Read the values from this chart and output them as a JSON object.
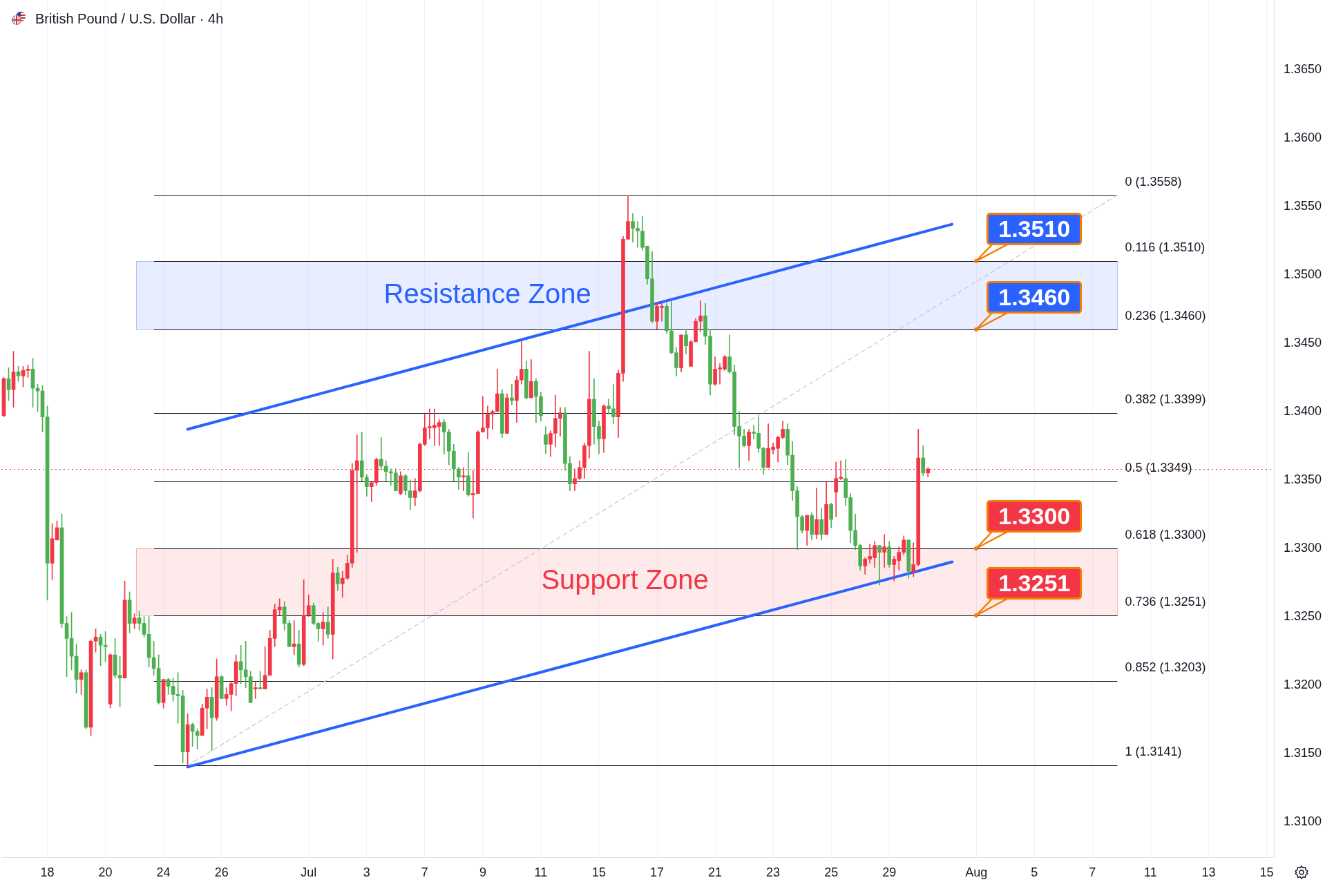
{
  "chart_data": {
    "type": "candlestick",
    "title": "British Pound / U.S. Dollar · 4h",
    "categories": [
      null,
      null,
      null,
      null,
      null,
      null,
      null,
      null,
      null,
      "18",
      null,
      null,
      null,
      null,
      null,
      null,
      null,
      null,
      null,
      null,
      null,
      "20",
      null,
      null,
      null,
      null,
      null,
      null,
      null,
      null,
      null,
      null,
      null,
      "24",
      null,
      null,
      null,
      null,
      null,
      null,
      null,
      null,
      null,
      null,
      null,
      "26",
      null,
      null,
      null,
      null,
      null,
      null,
      null,
      null,
      null,
      null,
      null,
      null,
      null,
      null,
      null,
      null,
      null,
      "Jul",
      null,
      null,
      null,
      null,
      null,
      null,
      null,
      null,
      null,
      null,
      null,
      "3",
      null,
      null,
      null,
      null,
      null,
      null,
      null,
      null,
      null,
      null,
      null,
      "7",
      null,
      null,
      null,
      null,
      null,
      null,
      null,
      null,
      null,
      null,
      null,
      "9",
      null,
      null,
      null,
      null,
      null,
      null,
      null,
      null,
      null,
      null,
      null,
      "11",
      null,
      null,
      null,
      null,
      null,
      null,
      null,
      null,
      null,
      null,
      null,
      "15",
      null,
      null,
      null,
      null,
      null,
      null,
      null,
      null,
      null,
      null,
      null,
      "17",
      null,
      null,
      null,
      null,
      null,
      null,
      null,
      null,
      null,
      null,
      null,
      "21",
      null,
      null,
      null,
      null,
      null,
      null,
      null,
      null,
      null,
      null,
      null,
      "23",
      null,
      null,
      null,
      null,
      null,
      null,
      null,
      null,
      null,
      null,
      null,
      "25",
      null,
      null,
      null,
      null,
      null,
      null,
      null,
      null,
      null,
      null,
      null,
      "29",
      null,
      null,
      null,
      null,
      null,
      null,
      null,
      null,
      null,
      null,
      null,
      null,
      null,
      null,
      null,
      null,
      null,
      "Aug",
      null,
      null,
      null,
      null,
      null,
      null,
      null,
      null,
      null,
      null,
      null,
      "5",
      null,
      null,
      null,
      null,
      null,
      null,
      null,
      null,
      null,
      null,
      null,
      "7",
      null,
      null,
      null,
      null,
      null,
      null,
      null,
      null,
      null,
      null,
      null,
      "11",
      null,
      null,
      null,
      null,
      null,
      null,
      null,
      null,
      null,
      null,
      null,
      "13",
      null,
      null,
      null,
      null,
      null,
      null,
      null,
      null,
      null,
      null,
      null,
      "15",
      null
    ],
    "ohlc": [
      [
        1.3397,
        1.3425,
        1.3396,
        1.3424
      ],
      [
        1.3424,
        1.3432,
        1.3408,
        1.3416
      ],
      [
        1.3416,
        1.3444,
        1.3403,
        1.3429
      ],
      [
        1.3429,
        1.3433,
        1.3422,
        1.3426
      ],
      [
        1.3426,
        1.3433,
        1.3418,
        1.343
      ],
      [
        1.343,
        1.3434,
        1.3425,
        1.3431
      ],
      [
        1.3431,
        1.3439,
        1.3403,
        1.3417
      ],
      [
        1.3417,
        1.342,
        1.34,
        1.3415
      ],
      [
        1.3415,
        1.3419,
        1.3385,
        1.3396
      ],
      [
        1.3396,
        1.3404,
        1.3262,
        1.3289
      ],
      [
        1.3289,
        1.3318,
        1.3277,
        1.3307
      ],
      [
        1.3306,
        1.332,
        1.3306,
        1.3315
      ],
      [
        1.3315,
        1.3325,
        1.3242,
        1.3245
      ],
      [
        1.3245,
        1.325,
        1.3206,
        1.3234
      ],
      [
        1.3234,
        1.3253,
        1.3211,
        1.3221
      ],
      [
        1.3221,
        1.323,
        1.3194,
        1.3204
      ],
      [
        1.3204,
        1.3211,
        1.3193,
        1.3209
      ],
      [
        1.3209,
        1.3211,
        1.3168,
        1.3169
      ],
      [
        1.3169,
        1.3233,
        1.3163,
        1.3232
      ],
      [
        1.3232,
        1.3241,
        1.3224,
        1.3235
      ],
      [
        1.3235,
        1.3237,
        1.3214,
        1.3229
      ],
      [
        1.3229,
        1.3239,
        1.3217,
        1.3228
      ],
      [
        1.3186,
        1.3223,
        1.3183,
        1.3222
      ],
      [
        1.3222,
        1.3234,
        1.3205,
        1.3207
      ],
      [
        1.3207,
        1.3221,
        1.3184,
        1.3205
      ],
      [
        1.3205,
        1.3276,
        1.3205,
        1.3262
      ],
      [
        1.3262,
        1.3268,
        1.3238,
        1.3245
      ],
      [
        1.3245,
        1.3252,
        1.3241,
        1.3249
      ],
      [
        1.3249,
        1.3254,
        1.324,
        1.3245
      ],
      [
        1.3245,
        1.325,
        1.3235,
        1.3237
      ],
      [
        1.3237,
        1.325,
        1.3213,
        1.322
      ],
      [
        1.322,
        1.3232,
        1.3207,
        1.3212
      ],
      [
        1.3212,
        1.3222,
        1.3186,
        1.3187
      ],
      [
        1.3187,
        1.3204,
        1.3183,
        1.3204
      ],
      [
        1.3204,
        1.3205,
        1.3193,
        1.3199
      ],
      [
        1.3199,
        1.3205,
        1.3188,
        1.3193
      ],
      [
        1.3193,
        1.3209,
        1.3172,
        1.3192
      ],
      [
        1.3192,
        1.3196,
        1.3143,
        1.3151
      ],
      [
        1.3151,
        1.3179,
        1.3141,
        1.3171
      ],
      [
        1.3171,
        1.3172,
        1.3155,
        1.3166
      ],
      [
        1.3166,
        1.3168,
        1.3153,
        1.3163
      ],
      [
        1.3163,
        1.3186,
        1.3163,
        1.3183
      ],
      [
        1.3183,
        1.3197,
        1.3168,
        1.3191
      ],
      [
        1.3191,
        1.3198,
        1.3152,
        1.3176
      ],
      [
        1.3176,
        1.3219,
        1.3174,
        1.3206
      ],
      [
        1.3206,
        1.3207,
        1.319,
        1.319
      ],
      [
        1.319,
        1.3198,
        1.3185,
        1.3193
      ],
      [
        1.3193,
        1.3202,
        1.3181,
        1.3201
      ],
      [
        1.3201,
        1.3222,
        1.3192,
        1.3217
      ],
      [
        1.3217,
        1.3229,
        1.3201,
        1.3211
      ],
      [
        1.3211,
        1.3232,
        1.3198,
        1.3206
      ],
      [
        1.3206,
        1.321,
        1.3187,
        1.3187
      ],
      [
        1.3197,
        1.3202,
        1.319,
        1.3198
      ],
      [
        1.3198,
        1.321,
        1.3197,
        1.3197
      ],
      [
        1.3197,
        1.3228,
        1.3197,
        1.3207
      ],
      [
        1.3207,
        1.324,
        1.3207,
        1.3234
      ],
      [
        1.3234,
        1.3259,
        1.3228,
        1.3255
      ],
      [
        1.3255,
        1.3263,
        1.3251,
        1.3257
      ],
      [
        1.3257,
        1.3261,
        1.324,
        1.3245
      ],
      [
        1.3245,
        1.3247,
        1.3228,
        1.3228
      ],
      [
        1.3228,
        1.3247,
        1.3222,
        1.323
      ],
      [
        1.323,
        1.324,
        1.3213,
        1.3215
      ],
      [
        1.3215,
        1.3277,
        1.3214,
        1.3251
      ],
      [
        1.3251,
        1.3266,
        1.325,
        1.3258
      ],
      [
        1.3258,
        1.326,
        1.3244,
        1.3245
      ],
      [
        1.3245,
        1.3246,
        1.3232,
        1.3241
      ],
      [
        1.3241,
        1.3253,
        1.3229,
        1.3246
      ],
      [
        1.3246,
        1.3257,
        1.3234,
        1.3237
      ],
      [
        1.3237,
        1.3292,
        1.3219,
        1.3282
      ],
      [
        1.3282,
        1.3286,
        1.3269,
        1.3274
      ],
      [
        1.3274,
        1.3283,
        1.3264,
        1.3278
      ],
      [
        1.3278,
        1.3295,
        1.3277,
        1.3289
      ],
      [
        1.3289,
        1.3362,
        1.3286,
        1.3357
      ],
      [
        1.3357,
        1.3383,
        1.3297,
        1.3364
      ],
      [
        1.3364,
        1.3385,
        1.3349,
        1.3352
      ],
      [
        1.3352,
        1.3354,
        1.3338,
        1.3345
      ],
      [
        1.3345,
        1.3348,
        1.3334,
        1.3348
      ],
      [
        1.3348,
        1.3366,
        1.3346,
        1.3365
      ],
      [
        1.3365,
        1.3381,
        1.3357,
        1.336
      ],
      [
        1.336,
        1.3364,
        1.3349,
        1.3356
      ],
      [
        1.3356,
        1.3358,
        1.3346,
        1.3355
      ],
      [
        1.3355,
        1.3358,
        1.3342,
        1.3342
      ],
      [
        1.334,
        1.3356,
        1.3339,
        1.3353
      ],
      [
        1.3353,
        1.3354,
        1.3339,
        1.3342
      ],
      [
        1.3342,
        1.335,
        1.3328,
        1.3337
      ],
      [
        1.3337,
        1.3351,
        1.3331,
        1.3342
      ],
      [
        1.3342,
        1.3377,
        1.3341,
        1.3376
      ],
      [
        1.3376,
        1.3398,
        1.3375,
        1.3388
      ],
      [
        1.3388,
        1.3402,
        1.338,
        1.3389
      ],
      [
        1.3388,
        1.3402,
        1.3375,
        1.339
      ],
      [
        1.3389,
        1.3394,
        1.3375,
        1.3392
      ],
      [
        1.3392,
        1.3394,
        1.3369,
        1.3385
      ],
      [
        1.3385,
        1.3387,
        1.3361,
        1.3371
      ],
      [
        1.3371,
        1.3376,
        1.3349,
        1.3358
      ],
      [
        1.3358,
        1.3359,
        1.3343,
        1.3352
      ],
      [
        1.3352,
        1.3359,
        1.3342,
        1.3353
      ],
      [
        1.3353,
        1.337,
        1.3338,
        1.3339
      ],
      [
        1.3339,
        1.3357,
        1.3322,
        1.334
      ],
      [
        1.334,
        1.3386,
        1.334,
        1.3385
      ],
      [
        1.3385,
        1.3411,
        1.3385,
        1.3388
      ],
      [
        1.3388,
        1.3404,
        1.338,
        1.3398
      ],
      [
        1.3398,
        1.3401,
        1.3387,
        1.34
      ],
      [
        1.34,
        1.3431,
        1.34,
        1.3413
      ],
      [
        1.3413,
        1.3416,
        1.3381,
        1.3384
      ],
      [
        1.3384,
        1.3413,
        1.3384,
        1.341
      ],
      [
        1.341,
        1.342,
        1.3405,
        1.3408
      ],
      [
        1.3408,
        1.3426,
        1.3392,
        1.3423
      ],
      [
        1.3423,
        1.3452,
        1.342,
        1.3431
      ],
      [
        1.3431,
        1.3437,
        1.3409,
        1.341
      ],
      [
        1.341,
        1.3438,
        1.341,
        1.3422
      ],
      [
        1.3422,
        1.3424,
        1.3392,
        1.3411
      ],
      [
        1.3411,
        1.3414,
        1.3393,
        1.3397
      ],
      [
        1.3383,
        1.3389,
        1.3369,
        1.3376
      ],
      [
        1.3376,
        1.3386,
        1.3367,
        1.3384
      ],
      [
        1.3384,
        1.3412,
        1.3374,
        1.3395
      ],
      [
        1.3395,
        1.3403,
        1.3382,
        1.3399
      ],
      [
        1.3399,
        1.3403,
        1.3357,
        1.3362
      ],
      [
        1.3362,
        1.3367,
        1.3342,
        1.3347
      ],
      [
        1.3347,
        1.3358,
        1.3342,
        1.3351
      ],
      [
        1.3351,
        1.3364,
        1.335,
        1.3359
      ],
      [
        1.3359,
        1.3377,
        1.3351,
        1.3375
      ],
      [
        1.3375,
        1.3444,
        1.3366,
        1.3409
      ],
      [
        1.3409,
        1.3424,
        1.3376,
        1.3389
      ],
      [
        1.3389,
        1.3393,
        1.3369,
        1.338
      ],
      [
        1.338,
        1.3405,
        1.337,
        1.3404
      ],
      [
        1.3404,
        1.3409,
        1.3398,
        1.3402
      ],
      [
        1.3402,
        1.342,
        1.3391,
        1.3396
      ],
      [
        1.3396,
        1.343,
        1.3381,
        1.3428
      ],
      [
        1.3428,
        1.3528,
        1.3422,
        1.3526
      ],
      [
        1.3526,
        1.3558,
        1.3526,
        1.3539
      ],
      [
        1.3539,
        1.3545,
        1.3524,
        1.3534
      ],
      [
        1.3534,
        1.3539,
        1.352,
        1.3532
      ],
      [
        1.3532,
        1.3543,
        1.3518,
        1.352
      ],
      [
        1.3521,
        1.3521,
        1.3493,
        1.3497
      ],
      [
        1.3497,
        1.3517,
        1.3465,
        1.3466
      ],
      [
        1.3466,
        1.348,
        1.346,
        1.3477
      ],
      [
        1.3476,
        1.3479,
        1.3466,
        1.3477
      ],
      [
        1.3477,
        1.3479,
        1.3457,
        1.3459
      ],
      [
        1.3459,
        1.3481,
        1.3442,
        1.3443
      ],
      [
        1.3443,
        1.3447,
        1.3426,
        1.3432
      ],
      [
        1.3432,
        1.3456,
        1.3429,
        1.3456
      ],
      [
        1.3456,
        1.346,
        1.3442,
        1.3448
      ],
      [
        1.3433,
        1.3452,
        1.3433,
        1.3451
      ],
      [
        1.3451,
        1.3468,
        1.3451,
        1.3466
      ],
      [
        1.3466,
        1.3481,
        1.3458,
        1.347
      ],
      [
        1.347,
        1.3479,
        1.3449,
        1.3455
      ],
      [
        1.3455,
        1.346,
        1.3412,
        1.342
      ],
      [
        1.342,
        1.344,
        1.3419,
        1.3431
      ],
      [
        1.3431,
        1.3435,
        1.342,
        1.3432
      ],
      [
        1.3431,
        1.3441,
        1.343,
        1.344
      ],
      [
        1.344,
        1.3456,
        1.3428,
        1.3429
      ],
      [
        1.3429,
        1.3434,
        1.3383,
        1.3389
      ],
      [
        1.3389,
        1.34,
        1.3359,
        1.3382
      ],
      [
        1.3382,
        1.3387,
        1.3374,
        1.3375
      ],
      [
        1.3375,
        1.3387,
        1.3364,
        1.3385
      ],
      [
        1.3385,
        1.339,
        1.338,
        1.3384
      ],
      [
        1.3384,
        1.3396,
        1.337,
        1.3373
      ],
      [
        1.3373,
        1.3374,
        1.3354,
        1.3359
      ],
      [
        1.3359,
        1.3391,
        1.3359,
        1.3373
      ],
      [
        1.3372,
        1.3377,
        1.3369,
        1.3374
      ],
      [
        1.3373,
        1.3382,
        1.3363,
        1.3381
      ],
      [
        1.3381,
        1.3393,
        1.338,
        1.3387
      ],
      [
        1.3387,
        1.3391,
        1.3361,
        1.3368
      ],
      [
        1.3368,
        1.3378,
        1.3335,
        1.3342
      ],
      [
        1.3342,
        1.3345,
        1.3299,
        1.3323
      ],
      [
        1.3323,
        1.3324,
        1.3311,
        1.3313
      ],
      [
        1.3313,
        1.3324,
        1.3302,
        1.3324
      ],
      [
        1.3324,
        1.3326,
        1.3306,
        1.331
      ],
      [
        1.331,
        1.3344,
        1.3307,
        1.3321
      ],
      [
        1.3321,
        1.3329,
        1.3306,
        1.331
      ],
      [
        1.331,
        1.3349,
        1.331,
        1.3332
      ],
      [
        1.3332,
        1.3333,
        1.3315,
        1.3321
      ],
      [
        1.3341,
        1.3363,
        1.3323,
        1.3351
      ],
      [
        1.3351,
        1.3364,
        1.335,
        1.3352
      ],
      [
        1.3351,
        1.3365,
        1.3331,
        1.3337
      ],
      [
        1.3337,
        1.334,
        1.3304,
        1.3313
      ],
      [
        1.3313,
        1.3325,
        1.3299,
        1.3302
      ],
      [
        1.3302,
        1.3303,
        1.3284,
        1.3287
      ],
      [
        1.3287,
        1.3293,
        1.3281,
        1.3292
      ],
      [
        1.3292,
        1.3303,
        1.3289,
        1.3294
      ],
      [
        1.3293,
        1.3305,
        1.3286,
        1.3302
      ],
      [
        1.3302,
        1.3302,
        1.3273,
        1.3297
      ],
      [
        1.3297,
        1.331,
        1.3286,
        1.3301
      ],
      [
        1.3301,
        1.3305,
        1.3286,
        1.3288
      ],
      [
        1.3288,
        1.3294,
        1.3276,
        1.3292
      ],
      [
        1.3291,
        1.3301,
        1.3284,
        1.3297
      ],
      [
        1.3297,
        1.3309,
        1.3295,
        1.3306
      ],
      [
        1.3306,
        1.3306,
        1.3278,
        1.3283
      ],
      [
        1.3283,
        1.3304,
        1.3279,
        1.3288
      ],
      [
        1.3288,
        1.3387,
        1.3287,
        1.3366
      ],
      [
        1.3366,
        1.3375,
        1.3353,
        1.3355
      ],
      [
        1.3355,
        1.3359,
        1.3352,
        1.3358
      ],
      null,
      null,
      null,
      null,
      null,
      null,
      null,
      null,
      null,
      null,
      null,
      null,
      null,
      null,
      null,
      null,
      null,
      null,
      null,
      null,
      null,
      null,
      null,
      null,
      null,
      null,
      null,
      null,
      null,
      null,
      null,
      null,
      null,
      null,
      null,
      null,
      null,
      null,
      null,
      null,
      null,
      null,
      null,
      null,
      null,
      null,
      null,
      null,
      null,
      null,
      null,
      null,
      null,
      null,
      null,
      null,
      null,
      null,
      null,
      null,
      null,
      null,
      null,
      null,
      null,
      null,
      null,
      null,
      null,
      null,
      null
    ],
    "colors": [
      "#f23645",
      "#4caf50",
      "#f23645",
      "#4caf50",
      "#f23645",
      "#f23645",
      "#4caf50",
      "#4caf50",
      "#4caf50",
      "#4caf50",
      "#f23645",
      "#f23645",
      "#4caf50",
      "#4caf50",
      "#4caf50",
      "#4caf50",
      "#f23645",
      "#4caf50",
      "#f23645",
      "#f23645",
      "#4caf50",
      "#4caf50",
      "#f23645",
      "#4caf50",
      "#4caf50",
      "#f23645",
      "#4caf50",
      "#f23645",
      "#4caf50",
      "#4caf50",
      "#4caf50",
      "#4caf50",
      "#4caf50",
      "#f23645",
      "#4caf50",
      "#4caf50",
      "#4caf50",
      "#4caf50",
      "#f23645",
      "#4caf50",
      "#4caf50",
      "#f23645",
      "#f23645",
      "#4caf50",
      "#f23645",
      "#4caf50",
      "#f23645",
      "#f23645",
      "#f23645",
      "#4caf50",
      "#4caf50",
      "#4caf50",
      "#f23645",
      "#4caf50",
      "#f23645",
      "#f23645",
      "#f23645",
      "#f23645",
      "#4caf50",
      "#4caf50",
      "#f23645",
      "#4caf50",
      "#f23645",
      "#f23645",
      "#4caf50",
      "#4caf50",
      "#f23645",
      "#4caf50",
      "#f23645",
      "#4caf50",
      "#f23645",
      "#f23645",
      "#f23645",
      "#f23645",
      "#4caf50",
      "#4caf50",
      "#f23645",
      "#f23645",
      "#4caf50",
      "#4caf50",
      "#4caf50",
      "#4caf50",
      "#f23645",
      "#4caf50",
      "#4caf50",
      "#f23645",
      "#f23645",
      "#f23645",
      "#f23645",
      "#f23645",
      "#f23645",
      "#4caf50",
      "#4caf50",
      "#4caf50",
      "#4caf50",
      "#f23645",
      "#4caf50",
      "#f23645",
      "#f23645",
      "#f23645",
      "#f23645",
      "#f23645",
      "#f23645",
      "#4caf50",
      "#f23645",
      "#4caf50",
      "#f23645",
      "#f23645",
      "#4caf50",
      "#f23645",
      "#4caf50",
      "#4caf50",
      "#4caf50",
      "#f23645",
      "#f23645",
      "#f23645",
      "#4caf50",
      "#4caf50",
      "#f23645",
      "#f23645",
      "#f23645",
      "#f23645",
      "#4caf50",
      "#4caf50",
      "#f23645",
      "#4caf50",
      "#4caf50",
      "#f23645",
      "#f23645",
      "#f23645",
      "#4caf50",
      "#4caf50",
      "#4caf50",
      "#4caf50",
      "#4caf50",
      "#f23645",
      "#f23645",
      "#4caf50",
      "#4caf50",
      "#4caf50",
      "#f23645",
      "#4caf50",
      "#f23645",
      "#f23645",
      "#f23645",
      "#4caf50",
      "#4caf50",
      "#f23645",
      "#f23645",
      "#f23645",
      "#4caf50",
      "#4caf50",
      "#4caf50",
      "#4caf50",
      "#f23645",
      "#4caf50",
      "#4caf50",
      "#4caf50",
      "#f23645",
      "#f23645",
      "#f23645",
      "#f23645",
      "#4caf50",
      "#4caf50",
      "#4caf50",
      "#4caf50",
      "#f23645",
      "#4caf50",
      "#f23645",
      "#4caf50",
      "#f23645",
      "#4caf50",
      "#f23645",
      "#f23645",
      "#4caf50",
      "#4caf50",
      "#4caf50",
      "#4caf50",
      "#f23645",
      "#f23645",
      "#f23645",
      "#4caf50",
      "#f23645",
      "#4caf50",
      "#f23645",
      "#f23645",
      "#f23645",
      "#4caf50",
      "#f23645",
      "#f23645",
      "#4caf50",
      "#f23645",
      null,
      null,
      null,
      null,
      null,
      null,
      null,
      null,
      null,
      null,
      null,
      null,
      null,
      null,
      null,
      null,
      null,
      null,
      null,
      null,
      null,
      null,
      null,
      null,
      null,
      null,
      null,
      null,
      null,
      null,
      null,
      null,
      null,
      null,
      null,
      null,
      null,
      null,
      null,
      null,
      null,
      null,
      null,
      null,
      null,
      null,
      null,
      null,
      null,
      null,
      null,
      null,
      null,
      null,
      null,
      null,
      null,
      null,
      null,
      null,
      null,
      null,
      null,
      null,
      null,
      null,
      null,
      null,
      null,
      null,
      null
    ],
    "series": [
      {
        "type": "line",
        "color": "#2962ff",
        "marker": "none",
        "line_style": "solid",
        "values": [
          null,
          null,
          null,
          null,
          null,
          null,
          null,
          null,
          null,
          null,
          null,
          null,
          null,
          null,
          null,
          null,
          null,
          null,
          null,
          null,
          null,
          null,
          null,
          null,
          null,
          null,
          null,
          null,
          null,
          null,
          null,
          null,
          null,
          null,
          null,
          null,
          null,
          null,
          1.3387,
          null,
          null,
          null,
          null,
          null,
          null,
          null,
          null,
          null,
          null,
          null,
          null,
          null,
          null,
          null,
          null,
          null,
          null,
          null,
          null,
          null,
          null,
          null,
          null,
          null,
          null,
          null,
          null,
          null,
          null,
          null,
          null,
          null,
          null,
          null,
          null,
          null,
          null,
          null,
          null,
          null,
          null,
          null,
          null,
          null,
          null,
          null,
          null,
          null,
          null,
          null,
          null,
          null,
          null,
          null,
          null,
          null,
          null,
          null,
          null,
          null,
          null,
          null,
          null,
          null,
          null,
          null,
          null,
          null,
          null,
          null,
          null,
          null,
          null,
          null,
          null,
          null,
          null,
          null,
          null,
          null,
          null,
          null,
          null,
          null,
          null,
          null,
          null,
          null,
          null,
          null,
          null,
          null,
          null,
          null,
          null,
          null,
          null,
          null,
          null,
          null,
          null,
          null,
          null,
          null,
          null,
          null,
          null,
          null,
          null,
          null,
          null,
          null,
          null,
          null,
          null,
          null,
          null,
          null,
          null,
          null,
          null,
          null,
          null,
          null,
          null,
          null,
          null,
          null,
          null,
          null,
          null,
          null,
          null,
          null,
          null,
          null,
          null,
          null,
          null,
          null,
          null,
          null,
          null,
          null,
          null,
          null,
          null,
          null,
          null,
          null,
          null,
          null,
          null,
          null,
          null,
          null,
          1.3537,
          null,
          null,
          null,
          null,
          null,
          null,
          null,
          null,
          null,
          null,
          null,
          null,
          null,
          null,
          null,
          null,
          null,
          null,
          null,
          null,
          null,
          null,
          null,
          null,
          null,
          null,
          null,
          null,
          null,
          null,
          null,
          null,
          null,
          null,
          null,
          null,
          null,
          null,
          null,
          null,
          null,
          null,
          null,
          null,
          null,
          null,
          null,
          null,
          null,
          null,
          null,
          null,
          null,
          null,
          null,
          null,
          null,
          null,
          null,
          null,
          null,
          null,
          null,
          null,
          null,
          null
        ]
      },
      {
        "type": "line",
        "color": "#2962ff",
        "marker": "none",
        "line_style": "solid",
        "values": [
          null,
          null,
          null,
          null,
          null,
          null,
          null,
          null,
          null,
          null,
          null,
          null,
          null,
          null,
          null,
          null,
          null,
          null,
          null,
          null,
          null,
          null,
          null,
          null,
          null,
          null,
          null,
          null,
          null,
          null,
          null,
          null,
          null,
          null,
          null,
          null,
          null,
          null,
          1.314,
          null,
          null,
          null,
          null,
          null,
          null,
          null,
          null,
          null,
          null,
          null,
          null,
          null,
          null,
          null,
          null,
          null,
          null,
          null,
          null,
          null,
          null,
          null,
          null,
          null,
          null,
          null,
          null,
          null,
          null,
          null,
          null,
          null,
          null,
          null,
          null,
          null,
          null,
          null,
          null,
          null,
          null,
          null,
          null,
          null,
          null,
          null,
          null,
          null,
          null,
          null,
          null,
          null,
          null,
          null,
          null,
          null,
          null,
          null,
          null,
          null,
          null,
          null,
          null,
          null,
          null,
          null,
          null,
          null,
          null,
          null,
          null,
          null,
          null,
          null,
          null,
          null,
          null,
          null,
          null,
          null,
          null,
          null,
          null,
          null,
          null,
          null,
          null,
          null,
          null,
          null,
          null,
          null,
          null,
          null,
          null,
          null,
          null,
          null,
          null,
          null,
          null,
          null,
          null,
          null,
          null,
          null,
          null,
          null,
          null,
          null,
          null,
          null,
          null,
          null,
          null,
          null,
          null,
          null,
          null,
          null,
          null,
          null,
          null,
          null,
          null,
          null,
          null,
          null,
          null,
          null,
          null,
          null,
          null,
          null,
          null,
          null,
          null,
          null,
          null,
          null,
          null,
          null,
          null,
          null,
          null,
          null,
          null,
          null,
          null,
          null,
          null,
          null,
          null,
          null,
          null,
          null,
          1.329,
          null,
          null,
          null,
          null,
          null,
          null,
          null,
          null,
          null,
          null,
          null,
          null,
          null,
          null,
          null,
          null,
          null,
          null,
          null,
          null,
          null,
          null,
          null,
          null,
          null,
          null,
          null,
          null,
          null,
          null,
          null,
          null,
          null,
          null,
          null,
          null,
          null,
          null,
          null,
          null,
          null,
          null,
          null,
          null,
          null,
          null,
          null,
          null,
          null,
          null,
          null,
          null,
          null,
          null,
          null,
          null,
          null,
          null,
          null,
          null,
          null,
          null,
          null,
          null,
          null,
          null
        ]
      },
      {
        "type": "line",
        "color": "#c3c6ce",
        "marker": "none",
        "line_style": "dashed",
        "values": [
          null,
          null,
          null,
          null,
          null,
          null,
          null,
          null,
          null,
          null,
          null,
          null,
          null,
          null,
          null,
          null,
          null,
          null,
          null,
          null,
          null,
          null,
          null,
          null,
          null,
          null,
          null,
          null,
          null,
          null,
          null,
          null,
          null,
          null,
          null,
          null,
          null,
          null,
          1.3141,
          null,
          null,
          null,
          null,
          null,
          null,
          null,
          null,
          null,
          null,
          null,
          null,
          null,
          null,
          null,
          null,
          null,
          null,
          null,
          null,
          null,
          null,
          null,
          null,
          null,
          null,
          null,
          null,
          null,
          null,
          null,
          null,
          null,
          null,
          null,
          null,
          null,
          null,
          null,
          null,
          null,
          null,
          null,
          null,
          null,
          null,
          null,
          null,
          null,
          null,
          null,
          null,
          null,
          null,
          null,
          null,
          null,
          null,
          null,
          null,
          null,
          null,
          null,
          null,
          null,
          null,
          null,
          null,
          null,
          null,
          null,
          null,
          null,
          null,
          null,
          null,
          null,
          null,
          null,
          null,
          null,
          null,
          null,
          null,
          null,
          null,
          null,
          null,
          null,
          null,
          null,
          null,
          null,
          null,
          null,
          null,
          null,
          null,
          null,
          null,
          null,
          null,
          null,
          null,
          null,
          null,
          null,
          null,
          null,
          null,
          null,
          null,
          null,
          null,
          null,
          null,
          null,
          null,
          null,
          null,
          null,
          null,
          null,
          null,
          null,
          null,
          null,
          null,
          null,
          null,
          null,
          null,
          null,
          null,
          null,
          null,
          null,
          null,
          null,
          null,
          null,
          null,
          null,
          null,
          null,
          null,
          null,
          null,
          null,
          null,
          null,
          null,
          null,
          null,
          null,
          null,
          null,
          null,
          null,
          null,
          null,
          null,
          null,
          null,
          null,
          null,
          null,
          null,
          null,
          null,
          null,
          null,
          null,
          null,
          null,
          null,
          null,
          null,
          null,
          null,
          null,
          null,
          null,
          null,
          null,
          null,
          null,
          null,
          null,
          null,
          null,
          1.3558,
          null,
          null,
          null,
          null,
          null,
          null,
          null,
          null,
          null,
          null,
          null,
          null,
          null,
          null,
          null,
          null,
          null,
          null,
          null,
          null,
          null,
          null,
          null,
          null,
          null,
          null,
          null,
          null,
          null,
          null,
          null,
          null
        ]
      }
    ],
    "ylim": [
      1.3074,
      1.3701
    ],
    "yticks": [
      {
        "value": 1.31,
        "label": "1.3100"
      },
      {
        "value": 1.315,
        "label": "1.3150"
      },
      {
        "value": 1.32,
        "label": "1.3200"
      },
      {
        "value": 1.325,
        "label": "1.3250"
      },
      {
        "value": 1.33,
        "label": "1.3300"
      },
      {
        "value": 1.335,
        "label": "1.3350"
      },
      {
        "value": 1.34,
        "label": "1.3400"
      },
      {
        "value": 1.345,
        "label": "1.3450"
      },
      {
        "value": 1.35,
        "label": "1.3500"
      },
      {
        "value": 1.355,
        "label": "1.3550"
      },
      {
        "value": 1.36,
        "label": "1.3600"
      },
      {
        "value": 1.365,
        "label": "1.3650"
      }
    ],
    "grid": "x",
    "bands": [
      {
        "axis": "y",
        "from": 1.346,
        "to": 1.351,
        "label": "Resistance Zone",
        "color": "#2962ff"
      },
      {
        "axis": "y",
        "from": 1.3251,
        "to": 1.33,
        "label": "Support Zone",
        "color": "#f23645"
      }
    ],
    "ref_lines": [
      {
        "axis": "y",
        "value": 1.3558,
        "label": "0 (1.3558)",
        "color": "#131722"
      },
      {
        "axis": "y",
        "value": 1.351,
        "label": "0.116 (1.3510)",
        "color": "#131722"
      },
      {
        "axis": "y",
        "value": 1.346,
        "label": "0.236 (1.3460)",
        "color": "#131722"
      },
      {
        "axis": "y",
        "value": 1.3399,
        "label": "0.382 (1.3399)",
        "color": "#131722"
      },
      {
        "axis": "y",
        "value": 1.3349,
        "label": "0.5 (1.3349)",
        "color": "#131722"
      },
      {
        "axis": "y",
        "value": 1.33,
        "label": "0.618 (1.3300)",
        "color": "#131722"
      },
      {
        "axis": "y",
        "value": 1.3251,
        "label": "0.736 (1.3251)",
        "color": "#131722"
      },
      {
        "axis": "y",
        "value": 1.3203,
        "label": "0.852 (1.3203)",
        "color": "#131722"
      },
      {
        "axis": "y",
        "value": 1.3141,
        "label": "1 (1.3141)",
        "color": "#131722"
      },
      {
        "axis": "y",
        "value": 1.3358,
        "color": "#f23645",
        "line_style": "dotted"
      }
    ],
    "annotations": [
      {
        "text": "1.3510",
        "x": "Aug",
        "y": 1.351
      },
      {
        "text": "1.3460",
        "x": "Aug",
        "y": 1.346
      },
      {
        "text": "1.3300",
        "x": "Aug",
        "y": 1.33
      },
      {
        "text": "1.3251",
        "x": "Aug",
        "y": 1.3251
      }
    ]
  }
}
